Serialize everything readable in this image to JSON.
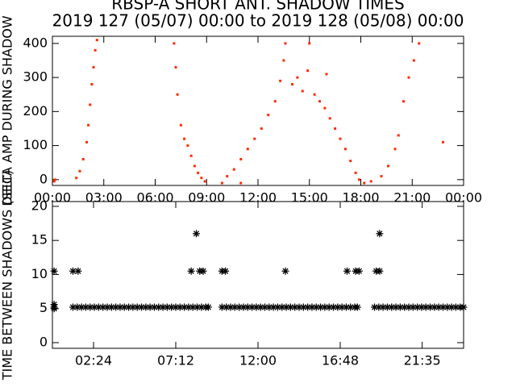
{
  "chart_data": [
    {
      "type": "scatter",
      "title": "RBSP-A SHORT ANT. SHADOW TIMES",
      "subtitle": "2019 127 (05/07) 00:00 to 2019 128 (05/08) 00:00",
      "y_label": "DELTA AMP DURING SHADOW",
      "marker": "dot",
      "xlim": [
        0,
        24
      ],
      "ylim": [
        -17,
        421
      ],
      "xticks": [
        {
          "value": 0,
          "label": "00:00"
        },
        {
          "value": 3,
          "label": "03:00"
        },
        {
          "value": 6,
          "label": "06:00"
        },
        {
          "value": 9,
          "label": "09:00"
        },
        {
          "value": 12,
          "label": "12:00"
        },
        {
          "value": 15,
          "label": "15:00"
        },
        {
          "value": 18,
          "label": "18:00"
        },
        {
          "value": 21,
          "label": "21:00"
        },
        {
          "value": 24,
          "label": "00:00"
        }
      ],
      "yticks": [
        0,
        100,
        200,
        300,
        400
      ],
      "series": [
        {
          "color": "#ff2a00",
          "x": [
            0.1,
            0.15,
            1.4,
            1.6,
            1.8,
            2.0,
            2.1,
            2.2,
            2.3,
            2.4,
            2.5,
            2.6,
            7.1,
            7.2,
            7.3,
            7.5,
            7.7,
            7.9,
            8.1,
            8.3,
            8.5,
            8.7,
            8.9,
            9.9,
            10.2,
            10.6,
            11.0,
            11.4,
            11.8,
            12.2,
            12.6,
            13.0,
            13.3,
            13.5,
            13.6,
            14.0,
            14.3,
            14.6,
            14.9,
            15.0,
            15.3,
            15.6,
            15.9,
            16.2,
            16.5,
            16.8,
            17.1,
            17.4,
            17.7,
            17.9,
            18.2,
            18.6,
            19.2,
            19.6,
            20.0,
            20.2,
            20.5,
            20.8,
            21.1,
            21.4,
            11.0,
            16.0,
            22.8
          ],
          "values": [
            -5,
            0,
            5,
            25,
            60,
            110,
            160,
            220,
            280,
            330,
            380,
            410,
            400,
            330,
            250,
            160,
            120,
            100,
            70,
            40,
            20,
            5,
            -5,
            -10,
            10,
            30,
            60,
            90,
            120,
            150,
            190,
            230,
            290,
            350,
            400,
            280,
            300,
            260,
            320,
            400,
            250,
            230,
            210,
            180,
            150,
            120,
            90,
            55,
            20,
            0,
            -10,
            -5,
            10,
            40,
            90,
            130,
            230,
            300,
            350,
            400,
            -10,
            310,
            110
          ]
        }
      ]
    },
    {
      "type": "scatter",
      "y_label": "TIME BETWEEN SHADOWS (SEC)",
      "marker": "asterisk",
      "xlim": [
        0,
        24
      ],
      "ylim": [
        -0.83,
        20.7
      ],
      "xticks": [
        {
          "value": 2.4,
          "label": "02:24"
        },
        {
          "value": 7.2,
          "label": "07:12"
        },
        {
          "value": 12,
          "label": "12:00"
        },
        {
          "value": 16.8,
          "label": "16:48"
        },
        {
          "value": 21.583,
          "label": "21:35"
        }
      ],
      "yticks": [
        0,
        5,
        10,
        15,
        20
      ],
      "series": [
        {
          "color": "#000000",
          "x": [
            0.1,
            0.1,
            0.1,
            1.2,
            1.45,
            1.7,
            1.95,
            2.2,
            2.45,
            2.7,
            2.95,
            3.2,
            3.45,
            3.7,
            3.95,
            4.2,
            4.45,
            4.7,
            4.95,
            5.2,
            5.45,
            5.7,
            5.95,
            6.2,
            6.45,
            6.7,
            6.95,
            7.2,
            7.45,
            7.7,
            7.95,
            8.2,
            8.45,
            8.7,
            8.95,
            9.1,
            9.9,
            10.15,
            10.4,
            10.65,
            10.9,
            11.15,
            11.4,
            11.65,
            11.9,
            12.15,
            12.4,
            12.65,
            12.9,
            13.15,
            13.4,
            13.65,
            13.9,
            14.15,
            14.4,
            14.65,
            14.9,
            15.15,
            15.4,
            15.65,
            15.9,
            16.15,
            16.4,
            16.65,
            16.9,
            17.15,
            17.4,
            17.65,
            17.8,
            18.8,
            19.05,
            19.3,
            19.55,
            19.8,
            20.05,
            20.3,
            20.55,
            20.8,
            21.05,
            21.3,
            21.55,
            21.8,
            22.05,
            22.3,
            22.55,
            22.8,
            23.05,
            23.3,
            23.55,
            23.8,
            24.0,
            0.1,
            1.2,
            1.5,
            8.1,
            8.4,
            8.6,
            8.8,
            9.9,
            10.1,
            13.6,
            17.2,
            17.7,
            17.9,
            18.9,
            19.1,
            19.1
          ],
          "values": [
            5.6,
            5.2,
            5.0,
            5.2,
            5.2,
            5.2,
            5.2,
            5.2,
            5.2,
            5.2,
            5.2,
            5.2,
            5.2,
            5.2,
            5.2,
            5.2,
            5.2,
            5.2,
            5.2,
            5.2,
            5.2,
            5.2,
            5.2,
            5.2,
            5.2,
            5.2,
            5.2,
            5.2,
            5.2,
            5.2,
            5.2,
            5.2,
            5.2,
            5.2,
            5.2,
            5.2,
            5.2,
            5.2,
            5.2,
            5.2,
            5.2,
            5.2,
            5.2,
            5.2,
            5.2,
            5.2,
            5.2,
            5.2,
            5.2,
            5.2,
            5.2,
            5.2,
            5.2,
            5.2,
            5.2,
            5.2,
            5.2,
            5.2,
            5.2,
            5.2,
            5.2,
            5.2,
            5.2,
            5.2,
            5.2,
            5.2,
            5.2,
            5.2,
            5.2,
            5.2,
            5.2,
            5.2,
            5.2,
            5.2,
            5.2,
            5.2,
            5.2,
            5.2,
            5.2,
            5.2,
            5.2,
            5.2,
            5.2,
            5.2,
            5.2,
            5.2,
            5.2,
            5.2,
            5.2,
            5.2,
            5.2,
            10.5,
            10.5,
            10.5,
            10.5,
            16,
            10.5,
            10.5,
            10.5,
            10.5,
            10.5,
            10.5,
            10.5,
            10.5,
            10.5,
            10.5,
            16
          ]
        }
      ]
    }
  ]
}
